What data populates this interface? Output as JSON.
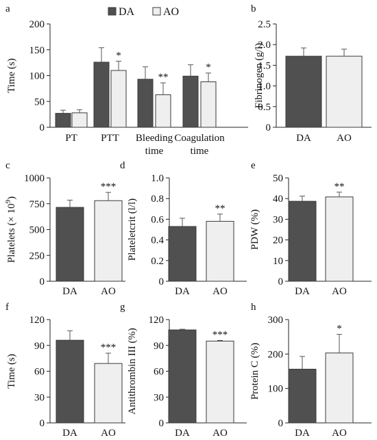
{
  "colors": {
    "DA": "#505050",
    "AO": "#efefef",
    "edge": "#3a3a3a"
  },
  "legend": {
    "items": [
      {
        "label": "DA",
        "color": "#505050"
      },
      {
        "label": "AO",
        "color": "#efefef"
      }
    ]
  },
  "chart_data": [
    {
      "id": "a",
      "letter": "a",
      "type": "bar",
      "ylabel": "Time (s)",
      "ylim": [
        0,
        200
      ],
      "yticks": [
        0,
        50,
        100,
        150,
        200
      ],
      "categories": [
        [
          "PT"
        ],
        [
          "PTT"
        ],
        [
          "Bleeding",
          "time"
        ],
        [
          "Coagulation",
          "time"
        ]
      ],
      "series": [
        {
          "name": "DA",
          "values": [
            27,
            126,
            93,
            99
          ],
          "errors": [
            6,
            28,
            24,
            22
          ]
        },
        {
          "name": "AO",
          "values": [
            28,
            110,
            63,
            88
          ],
          "errors": [
            6,
            18,
            23,
            17
          ]
        }
      ],
      "significance": [
        "",
        "*",
        "**",
        "*"
      ]
    },
    {
      "id": "b",
      "letter": "b",
      "type": "bar",
      "ylabel": "Fibrinogen (g/l)",
      "ylim": [
        0,
        2.5
      ],
      "yticks": [
        "0",
        "0.5",
        "1.0",
        "1.5",
        "2.0",
        "2.5"
      ],
      "categories": [
        [
          "DA"
        ],
        [
          "AO"
        ]
      ],
      "values": [
        1.72,
        1.72
      ],
      "errors": [
        0.2,
        0.17
      ],
      "significance": [
        "",
        ""
      ]
    },
    {
      "id": "c",
      "letter": "c",
      "type": "bar",
      "ylabel": "Platelets (× 10",
      "ylabel_sup": "9",
      "ylabel_end": ")",
      "ylim": [
        0,
        1000
      ],
      "yticks": [
        "0",
        "250",
        "500",
        "750",
        "1000"
      ],
      "categories": [
        [
          "DA"
        ],
        [
          "AO"
        ]
      ],
      "values": [
        715,
        780
      ],
      "errors": [
        70,
        80
      ],
      "significance": [
        "",
        "***"
      ]
    },
    {
      "id": "d",
      "letter": "d",
      "type": "bar",
      "ylabel": "Plateletcrit (l/l)",
      "ylim": [
        0,
        1.0
      ],
      "yticks": [
        "0",
        "0.2",
        "0.4",
        "0.6",
        "0.8",
        "1.0"
      ],
      "categories": [
        [
          "DA"
        ],
        [
          "AO"
        ]
      ],
      "values": [
        0.53,
        0.58
      ],
      "errors": [
        0.08,
        0.07
      ],
      "significance": [
        "",
        "**"
      ]
    },
    {
      "id": "e",
      "letter": "e",
      "type": "bar",
      "ylabel": "PDW (%)",
      "ylim": [
        0,
        50
      ],
      "yticks": [
        "0",
        "10",
        "20",
        "30",
        "40",
        "50"
      ],
      "categories": [
        [
          "DA"
        ],
        [
          "AO"
        ]
      ],
      "values": [
        38.7,
        40.8
      ],
      "errors": [
        2.5,
        2.3
      ],
      "significance": [
        "",
        "**"
      ]
    },
    {
      "id": "f",
      "letter": "f",
      "type": "bar",
      "ylabel": "Time (s)",
      "ylim": [
        0,
        120
      ],
      "yticks": [
        "0",
        "30",
        "60",
        "90",
        "120"
      ],
      "categories": [
        [
          "DA"
        ],
        [
          "AO"
        ]
      ],
      "values": [
        96,
        69
      ],
      "errors": [
        11,
        12
      ],
      "significance": [
        "",
        "***"
      ]
    },
    {
      "id": "g",
      "letter": "g",
      "type": "bar",
      "ylabel": "Antithrombin III (%)",
      "ylim": [
        0,
        120
      ],
      "yticks": [
        "0",
        "30",
        "60",
        "90",
        "120"
      ],
      "categories": [
        [
          "DA"
        ],
        [
          "AO"
        ]
      ],
      "values": [
        108,
        95
      ],
      "errors": [
        0.8,
        0.8
      ],
      "significance": [
        "",
        "***"
      ]
    },
    {
      "id": "h",
      "letter": "h",
      "type": "bar",
      "ylabel": "Protein C (%)",
      "ylim": [
        0,
        300
      ],
      "yticks": [
        "0",
        "100",
        "200",
        "300"
      ],
      "categories": [
        [
          "DA"
        ],
        [
          "AO"
        ]
      ],
      "values": [
        156,
        203
      ],
      "errors": [
        37,
        54
      ],
      "significance": [
        "",
        "*"
      ]
    }
  ]
}
